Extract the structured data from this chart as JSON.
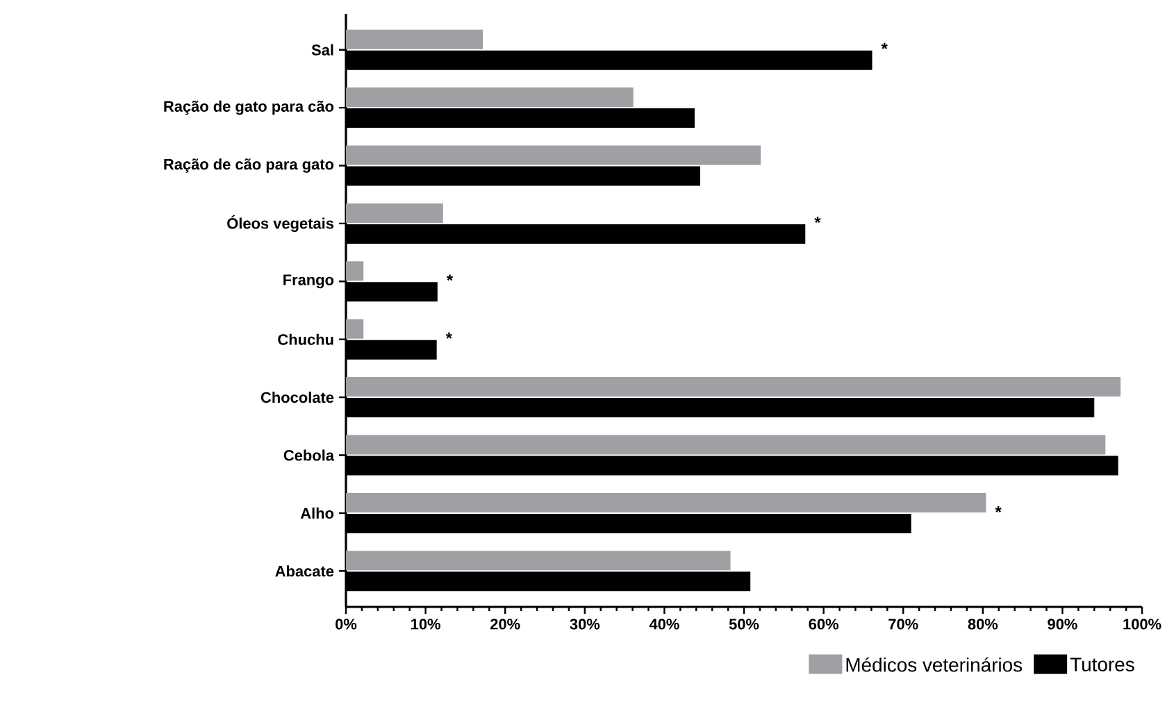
{
  "chart_data": {
    "type": "bar",
    "orientation": "horizontal",
    "categories": [
      "Sal",
      "Ração de gato para cão",
      "Ração de cão para gato",
      "Óleos vegetais",
      "Frango",
      "Chuchu",
      "Chocolate",
      "Cebola",
      "Alho",
      "Abacate"
    ],
    "series": [
      {
        "name": "Médicos veterinários",
        "color": "#a0a0a4",
        "values": [
          17.2,
          36.1,
          52.1,
          12.2,
          2.2,
          2.2,
          97.3,
          95.4,
          80.4,
          48.3
        ]
      },
      {
        "name": "Tutores",
        "color": "#000000",
        "values": [
          66.1,
          43.8,
          44.5,
          57.7,
          11.5,
          11.4,
          94.0,
          97.0,
          71.0,
          50.8
        ]
      }
    ],
    "xlim": [
      0,
      100
    ],
    "xticks": [
      {
        "value": 0,
        "label": "0%"
      },
      {
        "value": 10,
        "label": "10%"
      },
      {
        "value": 20,
        "label": "20%"
      },
      {
        "value": 30,
        "label": "30%"
      },
      {
        "value": 40,
        "label": "40%"
      },
      {
        "value": 50,
        "label": "50%"
      },
      {
        "value": 60,
        "label": "60%"
      },
      {
        "value": 70,
        "label": "70%"
      },
      {
        "value": 80,
        "label": "80%"
      },
      {
        "value": 90,
        "label": "90%"
      },
      {
        "value": 100,
        "label": "100%"
      }
    ],
    "annotations": [
      {
        "text": "*",
        "x": 66.1,
        "y": "Sal"
      },
      {
        "text": "*",
        "x": 57.7,
        "y": "Óleos vegetais"
      },
      {
        "text": "*",
        "x": 11.5,
        "y": "Frango"
      },
      {
        "text": "*",
        "x": 11.4,
        "y": "Chuchu"
      },
      {
        "text": "*",
        "x": 80.4,
        "y": "Alho"
      }
    ],
    "legend": "bottom right",
    "grid": false
  }
}
